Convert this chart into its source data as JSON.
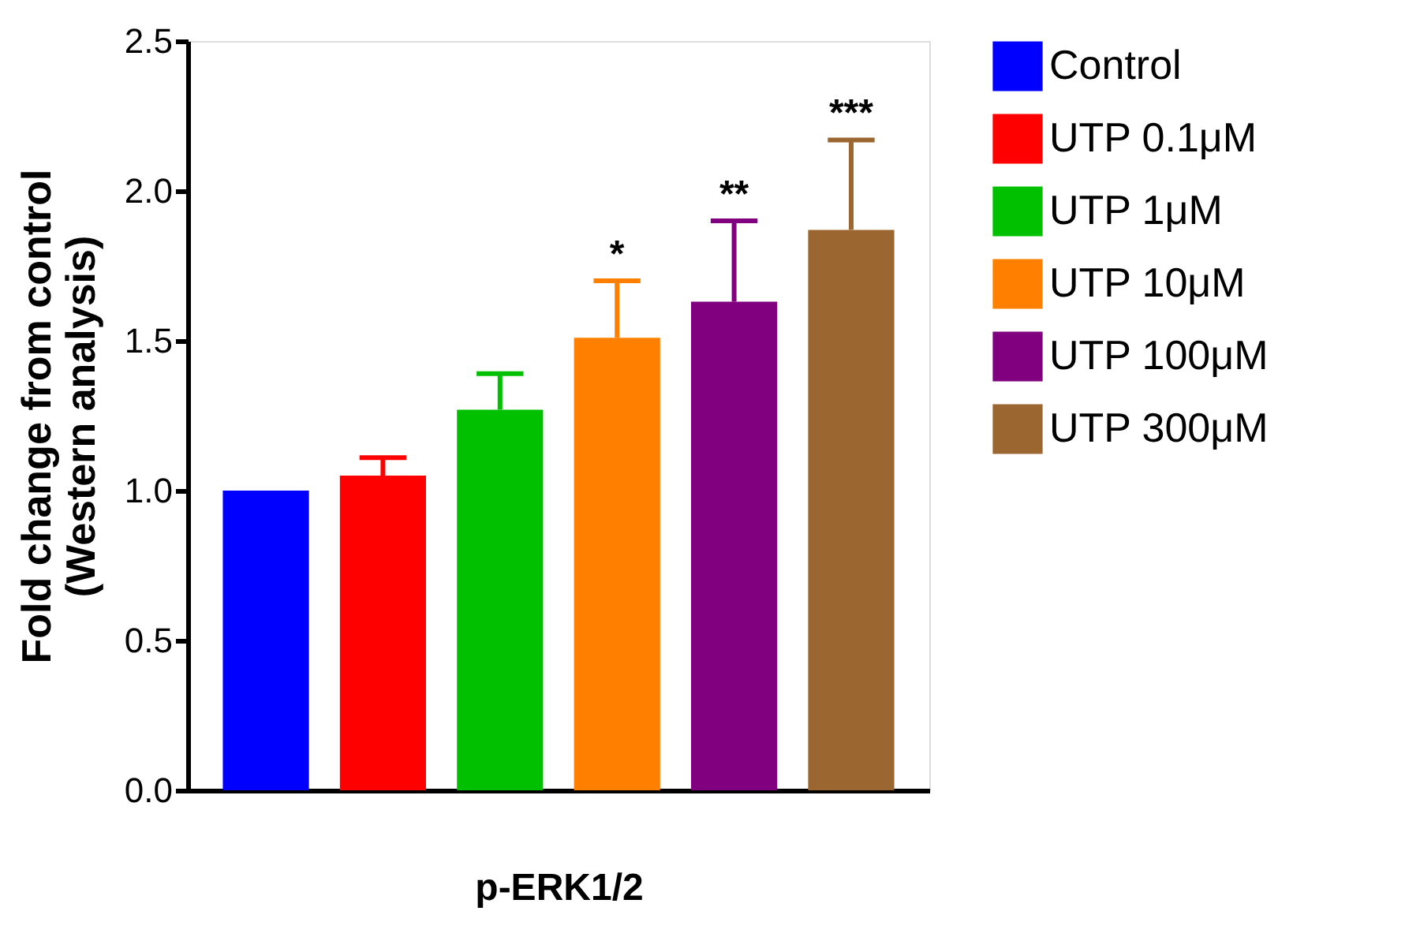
{
  "chart_data": {
    "type": "bar",
    "xlabel": "p-ERK1/2",
    "ylabel": "Fold change from control\n(Western analysis)",
    "categories": [
      null,
      null,
      null,
      null,
      null,
      null
    ],
    "series": [
      {
        "name": "Control",
        "color": "#0000ff",
        "values": [
          1.0,
          null,
          null,
          null,
          null,
          null
        ],
        "errors": [
          null,
          null,
          null,
          null,
          null,
          null
        ]
      },
      {
        "name": "UTP 0.1μM",
        "color": "#ff0000",
        "values": [
          null,
          1.05,
          null,
          null,
          null,
          null
        ],
        "errors": [
          null,
          [
            1.05,
            1.11
          ],
          null,
          null,
          null,
          null
        ]
      },
      {
        "name": "UTP 1μM",
        "color": "#00c000",
        "values": [
          null,
          null,
          1.27,
          null,
          null,
          null
        ],
        "errors": [
          null,
          null,
          [
            1.27,
            1.39
          ],
          null,
          null,
          null
        ]
      },
      {
        "name": "UTP 10μM",
        "color": "#ff8000",
        "values": [
          null,
          null,
          null,
          1.51,
          null,
          null
        ],
        "errors": [
          null,
          null,
          null,
          [
            1.51,
            1.7
          ],
          null,
          null
        ]
      },
      {
        "name": "UTP 100μM",
        "color": "#800080",
        "values": [
          null,
          null,
          null,
          null,
          1.63,
          null
        ],
        "errors": [
          null,
          null,
          null,
          null,
          [
            1.63,
            1.9
          ],
          null
        ]
      },
      {
        "name": "UTP 300μM",
        "color": "#9c6630",
        "values": [
          null,
          null,
          null,
          null,
          null,
          1.87
        ],
        "errors": [
          null,
          null,
          null,
          null,
          null,
          [
            1.87,
            2.17
          ]
        ]
      }
    ],
    "ylim": [
      0,
      2.5
    ],
    "yticks": [
      {
        "value": 0,
        "label": "0.0"
      },
      {
        "value": 0.5,
        "label": "0.5"
      },
      {
        "value": 1,
        "label": "1.0"
      },
      {
        "value": 1.5,
        "label": "1.5"
      },
      {
        "value": 2,
        "label": "2.0"
      },
      {
        "value": 2.5,
        "label": "2.5"
      }
    ],
    "annotations": [
      "*",
      "**",
      "***"
    ],
    "grid": false,
    "legend": "right"
  }
}
